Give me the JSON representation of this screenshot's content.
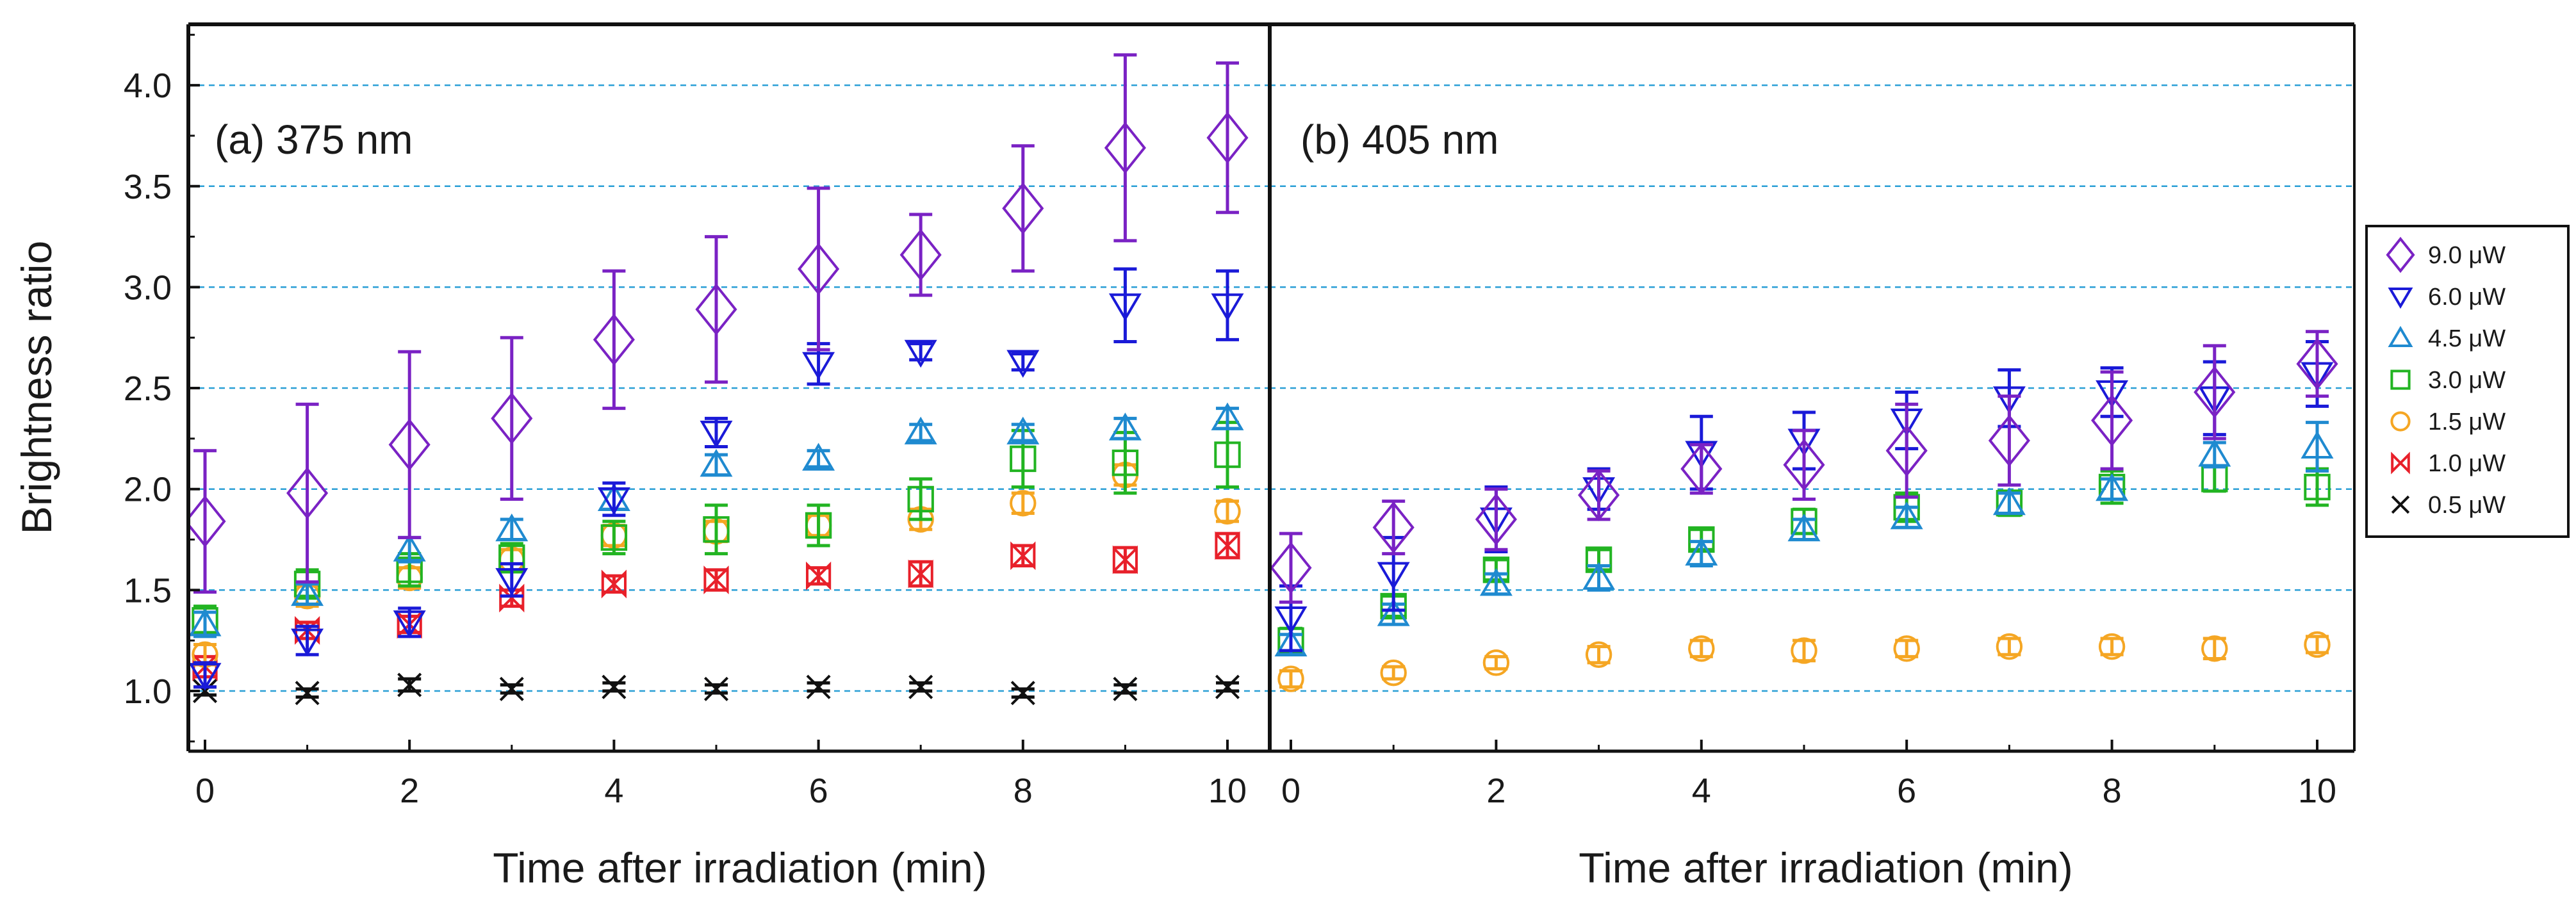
{
  "chart_data": {
    "type": "scatter",
    "ylabel": "Brightness ratio",
    "xlabel": "Time after irradiation (min)",
    "ylim": [
      0.7,
      4.3
    ],
    "xlim": [
      -0.2,
      10.5
    ],
    "yticks": [
      "1.0",
      "1.5",
      "2.0",
      "2.5",
      "3.0",
      "3.5",
      "4.0"
    ],
    "xticks": [
      "0",
      "2",
      "4",
      "6",
      "8",
      "10"
    ],
    "grid": "horizontal dashed at y ticks",
    "legend_position": "right",
    "legend": [
      {
        "key": "p9",
        "label": "9.0 μW",
        "color": "#7a22c4",
        "marker": "diamond"
      },
      {
        "key": "p6",
        "label": "6.0 μW",
        "color": "#1a1ad8",
        "marker": "triangle-down"
      },
      {
        "key": "p45",
        "label": "4.5 μW",
        "color": "#1f8ad0",
        "marker": "triangle-up"
      },
      {
        "key": "p3",
        "label": "3.0 μW",
        "color": "#22b422",
        "marker": "square"
      },
      {
        "key": "p15",
        "label": "1.5 μW",
        "color": "#f5a623",
        "marker": "circle"
      },
      {
        "key": "p1",
        "label": "1.0 μW",
        "color": "#e8202a",
        "marker": "bowtie"
      },
      {
        "key": "p05",
        "label": "0.5 μW",
        "color": "#111111",
        "marker": "x"
      }
    ],
    "panels": [
      {
        "label": "(a) 375 nm",
        "series": [
          {
            "key": "p05",
            "x": [
              0,
              1,
              2,
              3,
              4,
              5,
              6,
              7,
              8,
              9,
              10
            ],
            "y": [
              1.0,
              0.99,
              1.03,
              1.01,
              1.02,
              1.01,
              1.02,
              1.02,
              0.99,
              1.01,
              1.02
            ],
            "err": [
              0.02,
              0.02,
              0.03,
              0.02,
              0.02,
              0.02,
              0.02,
              0.02,
              0.02,
              0.02,
              0.02
            ]
          },
          {
            "key": "p1",
            "x": [
              0,
              1,
              2,
              3,
              4,
              5,
              6,
              7,
              8,
              9,
              10
            ],
            "y": [
              1.12,
              1.3,
              1.33,
              1.46,
              1.53,
              1.55,
              1.57,
              1.58,
              1.67,
              1.65,
              1.72
            ],
            "err": [
              0.05,
              0.04,
              0.04,
              0.04,
              0.04,
              0.05,
              0.04,
              0.06,
              0.05,
              0.06,
              0.06
            ]
          },
          {
            "key": "p15",
            "x": [
              0,
              1,
              2,
              3,
              4,
              5,
              6,
              7,
              8,
              9,
              10
            ],
            "y": [
              1.18,
              1.47,
              1.56,
              1.65,
              1.77,
              1.79,
              1.82,
              1.85,
              1.93,
              2.07,
              1.89
            ],
            "err": [
              0.05,
              0.05,
              0.05,
              0.05,
              0.05,
              0.05,
              0.05,
              0.05,
              0.05,
              0.05,
              0.05
            ]
          },
          {
            "key": "p3",
            "x": [
              0,
              1,
              2,
              3,
              4,
              5,
              6,
              7,
              8,
              9,
              10
            ],
            "y": [
              1.35,
              1.53,
              1.6,
              1.66,
              1.76,
              1.8,
              1.82,
              1.95,
              2.15,
              2.13,
              2.17
            ],
            "err": [
              0.07,
              0.07,
              0.08,
              0.07,
              0.08,
              0.12,
              0.1,
              0.1,
              0.14,
              0.15,
              0.16
            ]
          },
          {
            "key": "p45",
            "x": [
              0,
              1,
              2,
              3,
              4,
              5,
              6,
              7,
              8,
              9,
              10
            ],
            "y": [
              1.33,
              1.48,
              1.7,
              1.8,
              1.95,
              2.12,
              2.15,
              2.28,
              2.28,
              2.3,
              2.35
            ],
            "err": [
              0.06,
              0.05,
              0.06,
              0.05,
              0.05,
              0.05,
              0.04,
              0.04,
              0.04,
              0.05,
              0.05
            ]
          },
          {
            "key": "p6",
            "x": [
              0,
              1,
              2,
              3,
              4,
              5,
              6,
              7,
              8,
              9,
              10
            ],
            "y": [
              1.08,
              1.25,
              1.34,
              1.55,
              1.95,
              2.28,
              2.62,
              2.68,
              2.63,
              2.91,
              2.91
            ],
            "err": [
              0.06,
              0.07,
              0.07,
              0.08,
              0.08,
              0.07,
              0.1,
              0.04,
              0.04,
              0.18,
              0.17
            ]
          },
          {
            "key": "p9",
            "x": [
              0,
              1,
              2,
              3,
              4,
              5,
              6,
              7,
              8,
              9,
              10
            ],
            "y": [
              1.84,
              1.98,
              2.22,
              2.35,
              2.74,
              2.89,
              3.09,
              3.16,
              3.39,
              3.69,
              3.74
            ],
            "err": [
              0.35,
              0.44,
              0.46,
              0.4,
              0.34,
              0.36,
              0.4,
              0.2,
              0.31,
              0.46,
              0.37
            ]
          }
        ]
      },
      {
        "label": "(b) 405 nm",
        "series": [
          {
            "key": "p15",
            "x": [
              0,
              1,
              2,
              3,
              4,
              5,
              6,
              7,
              8,
              9,
              10
            ],
            "y": [
              1.06,
              1.09,
              1.14,
              1.18,
              1.21,
              1.2,
              1.21,
              1.22,
              1.22,
              1.21,
              1.23
            ],
            "err": [
              0.04,
              0.03,
              0.03,
              0.04,
              0.04,
              0.05,
              0.04,
              0.04,
              0.04,
              0.05,
              0.04
            ]
          },
          {
            "key": "p3",
            "x": [
              0,
              1,
              2,
              3,
              4,
              5,
              6,
              7,
              8,
              9,
              10
            ],
            "y": [
              1.25,
              1.42,
              1.6,
              1.65,
              1.75,
              1.84,
              1.91,
              1.93,
              2.01,
              2.05,
              2.01
            ],
            "err": [
              0.06,
              0.05,
              0.05,
              0.05,
              0.05,
              0.06,
              0.07,
              0.06,
              0.08,
              0.06,
              0.09
            ]
          },
          {
            "key": "p45",
            "x": [
              0,
              1,
              2,
              3,
              4,
              5,
              6,
              7,
              8,
              9,
              10
            ],
            "y": [
              1.23,
              1.38,
              1.53,
              1.56,
              1.68,
              1.8,
              1.86,
              1.93,
              2.0,
              2.17,
              2.21
            ],
            "err": [
              0.05,
              0.05,
              0.05,
              0.06,
              0.06,
              0.05,
              0.05,
              0.05,
              0.05,
              0.06,
              0.12
            ]
          },
          {
            "key": "p6",
            "x": [
              0,
              1,
              2,
              3,
              4,
              5,
              6,
              7,
              8,
              9,
              10
            ],
            "y": [
              1.36,
              1.58,
              1.85,
              2.0,
              2.18,
              2.24,
              2.34,
              2.45,
              2.48,
              2.45,
              2.57
            ],
            "err": [
              0.16,
              0.18,
              0.16,
              0.1,
              0.18,
              0.14,
              0.14,
              0.14,
              0.12,
              0.18,
              0.16
            ]
          },
          {
            "key": "p9",
            "x": [
              0,
              1,
              2,
              3,
              4,
              5,
              6,
              7,
              8,
              9,
              10
            ],
            "y": [
              1.61,
              1.81,
              1.85,
              1.97,
              2.1,
              2.12,
              2.19,
              2.24,
              2.34,
              2.48,
              2.62
            ],
            "err": [
              0.17,
              0.13,
              0.15,
              0.12,
              0.12,
              0.17,
              0.23,
              0.22,
              0.24,
              0.23,
              0.16
            ]
          }
        ]
      }
    ]
  }
}
